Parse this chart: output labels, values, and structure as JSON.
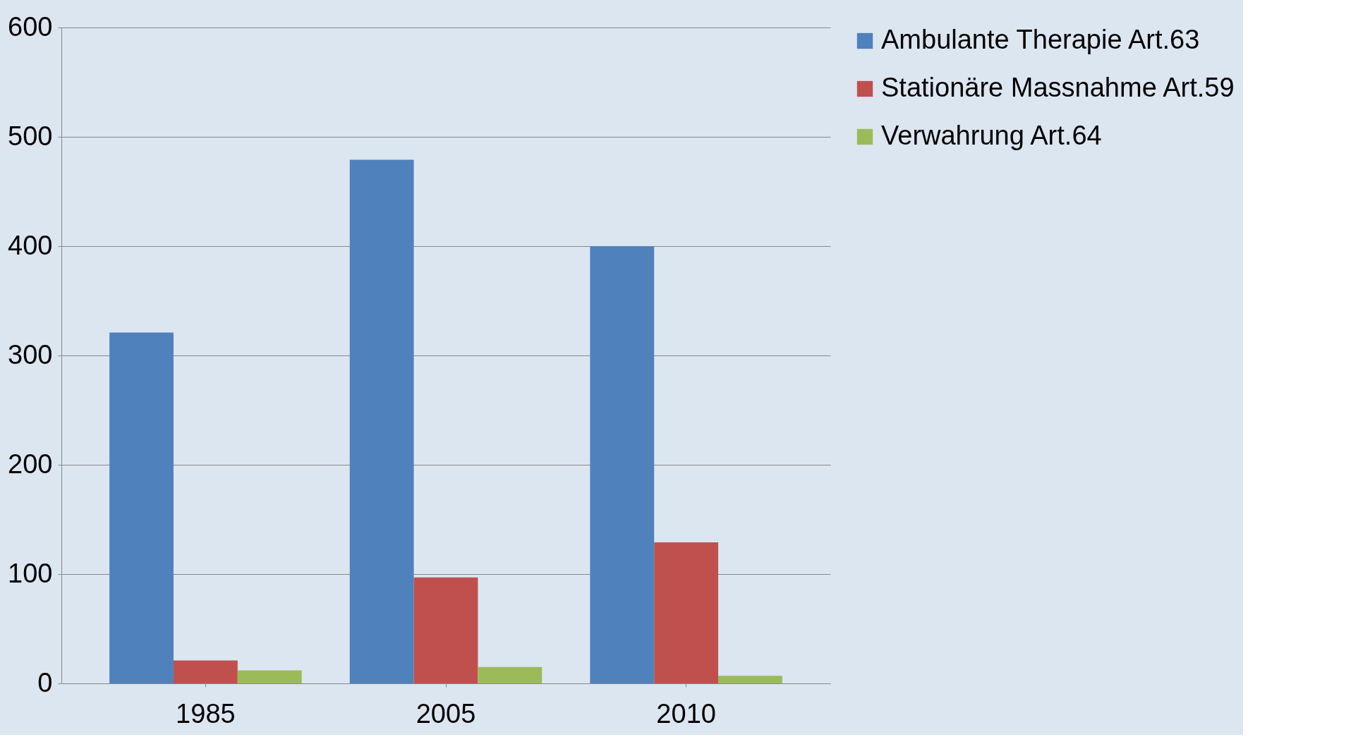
{
  "chart_data": {
    "type": "bar",
    "categories": [
      "1985",
      "2005",
      "2010"
    ],
    "series": [
      {
        "name": "Ambulante Therapie Art.63",
        "color": "#4f81bd",
        "values": [
          321,
          479,
          400
        ]
      },
      {
        "name": "Stationäre Massnahme Art.59",
        "color": "#c0504d",
        "values": [
          21,
          97,
          129
        ]
      },
      {
        "name": "Verwahrung Art.64",
        "color": "#9bbb59",
        "values": [
          12,
          15,
          7
        ]
      }
    ],
    "ylim": [
      0,
      600
    ],
    "yticks": [
      0,
      100,
      200,
      300,
      400,
      500,
      600
    ],
    "grid": "y",
    "legend": "right"
  }
}
